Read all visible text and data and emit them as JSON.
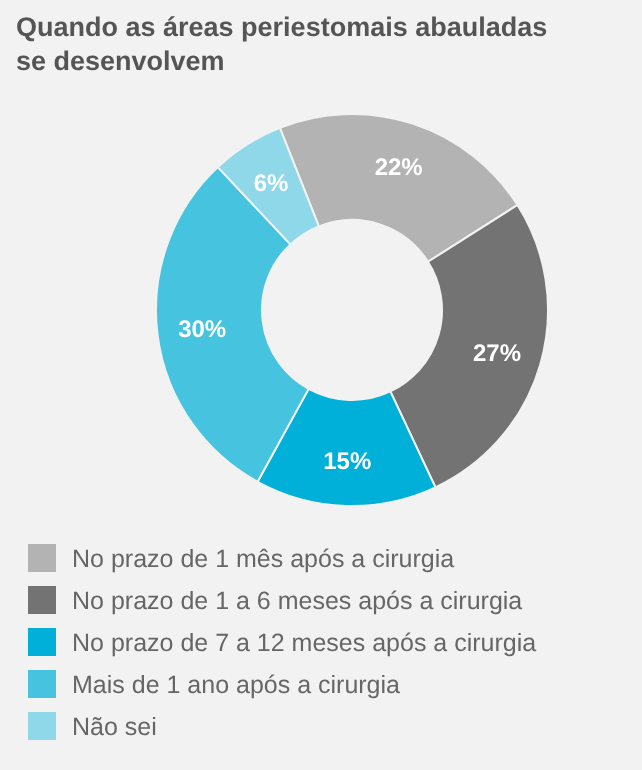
{
  "chart_data": {
    "type": "donut",
    "title": "Quando as áreas periestomais abauladas se desenvolvem",
    "categories": [
      "No prazo de 1 mês após a cirurgia",
      "No prazo de 1 a 6 meses após a cirurgia",
      "No prazo de 7 a 12 meses após a cirurgia",
      "Mais de 1 ano após a cirurgia",
      "Não sei"
    ],
    "values": [
      22,
      27,
      15,
      30,
      6
    ],
    "colors": [
      "#b3b3b3",
      "#737373",
      "#00b0d8",
      "#45c3df",
      "#8fd8ea"
    ],
    "value_labels": [
      "22%",
      "27%",
      "15%",
      "30%",
      "6%"
    ],
    "legend": "bottom"
  }
}
